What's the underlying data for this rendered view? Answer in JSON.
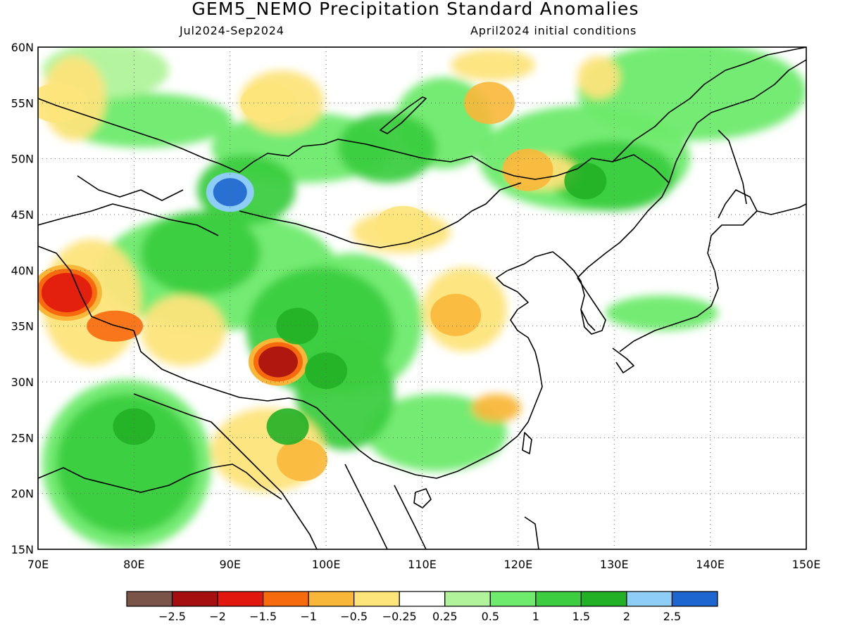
{
  "title": "GEM5_NEMO Precipitation Standard Anomalies",
  "subtitle_left": "Jul2024-Sep2024",
  "subtitle_right": "April2024 initial conditions",
  "lat_labels": [
    "60N",
    "55N",
    "50N",
    "45N",
    "40N",
    "35N",
    "30N",
    "25N",
    "20N",
    "15N"
  ],
  "lon_labels": [
    "70E",
    "80E",
    "90E",
    "100E",
    "110E",
    "120E",
    "130E",
    "140E",
    "150E"
  ],
  "colorbar": {
    "colors": [
      "#7a5448",
      "#a50f0f",
      "#e0180e",
      "#f86a0e",
      "#f9b73a",
      "#fde47b",
      "#ffffff",
      "#b0f39a",
      "#6eea6c",
      "#3ccd40",
      "#22b026",
      "#8ecdf5",
      "#1e66cf"
    ],
    "labels": [
      "-2.5",
      "-2",
      "-1.5",
      "-1",
      "-0.5",
      "-0.25",
      "0.25",
      "0.5",
      "1",
      "1.5",
      "2",
      "2.5"
    ]
  },
  "chart_data": {
    "type": "heatmap",
    "title": "GEM5_NEMO Precipitation Standard Anomalies",
    "period": "Jul2024-Sep2024",
    "initial_conditions": "April2024 initial conditions",
    "lon_range": [
      70,
      150
    ],
    "lat_range": [
      15,
      60
    ],
    "grid": true,
    "colorbar_levels": [
      -2.5,
      -2,
      -1.5,
      -1,
      -0.5,
      -0.25,
      0.25,
      0.5,
      1,
      1.5,
      2,
      2.5
    ],
    "features": [
      {
        "lon": 95,
        "lat": 31.8,
        "value": -2.5
      },
      {
        "lon": 90,
        "lat": 47,
        "value": 2.5
      },
      {
        "lon": 73,
        "lat": 38,
        "value": -2
      },
      {
        "lon": 78,
        "lat": 35,
        "value": -1.5
      },
      {
        "lon": 113.5,
        "lat": 36,
        "value": -1
      },
      {
        "lon": 117,
        "lat": 55,
        "value": -1
      },
      {
        "lon": 121,
        "lat": 49,
        "value": -1
      },
      {
        "lon": 94,
        "lat": 55,
        "value": -0.5
      },
      {
        "lon": 72,
        "lat": 55,
        "value": -0.5
      },
      {
        "lon": 108,
        "lat": 44,
        "value": -0.5
      },
      {
        "lon": 97.5,
        "lat": 23,
        "value": -1
      },
      {
        "lon": 80,
        "lat": 26,
        "value": 1.5
      },
      {
        "lon": 100,
        "lat": 31,
        "value": 1.5
      },
      {
        "lon": 127,
        "lat": 48,
        "value": 1.5
      },
      {
        "lon": 96,
        "lat": 26,
        "value": 1.5
      },
      {
        "lon": 97,
        "lat": 35,
        "value": 1.5
      }
    ]
  }
}
